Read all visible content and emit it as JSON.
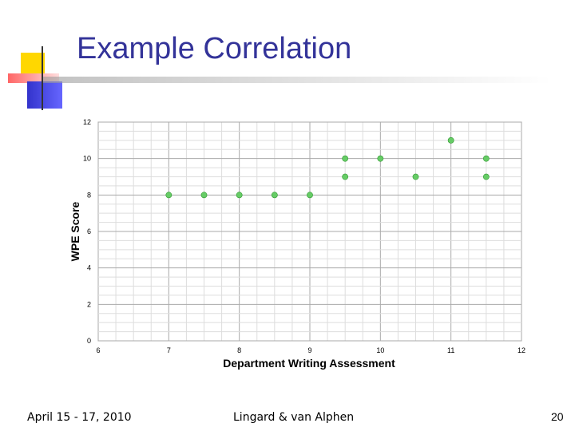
{
  "slide": {
    "title": "Example Correlation",
    "footer_left": "April 15 - 17, 2010",
    "footer_center": "Lingard & van Alphen",
    "page_number": "20"
  },
  "colors": {
    "title": "#333399",
    "accent_yellow": "#ffd700",
    "accent_red": "#ff6666",
    "accent_blue": "#3333cc",
    "marker": "#66cc66"
  },
  "chart_data": {
    "type": "scatter",
    "xlabel": "Department Writing Assessment",
    "ylabel": "WPE Score",
    "xlim": [
      6,
      12
    ],
    "ylim": [
      0,
      12
    ],
    "xticks": [
      6,
      7,
      8,
      9,
      10,
      11,
      12
    ],
    "yticks": [
      0,
      2,
      4,
      6,
      8,
      10,
      12
    ],
    "grid": true,
    "points": [
      {
        "x": 7,
        "y": 8
      },
      {
        "x": 7.5,
        "y": 8
      },
      {
        "x": 8,
        "y": 8
      },
      {
        "x": 8.5,
        "y": 8
      },
      {
        "x": 9,
        "y": 8
      },
      {
        "x": 9.5,
        "y": 9
      },
      {
        "x": 9.5,
        "y": 10
      },
      {
        "x": 10,
        "y": 10
      },
      {
        "x": 10.5,
        "y": 9
      },
      {
        "x": 11,
        "y": 11
      },
      {
        "x": 11.5,
        "y": 10
      },
      {
        "x": 11.5,
        "y": 9
      }
    ]
  }
}
